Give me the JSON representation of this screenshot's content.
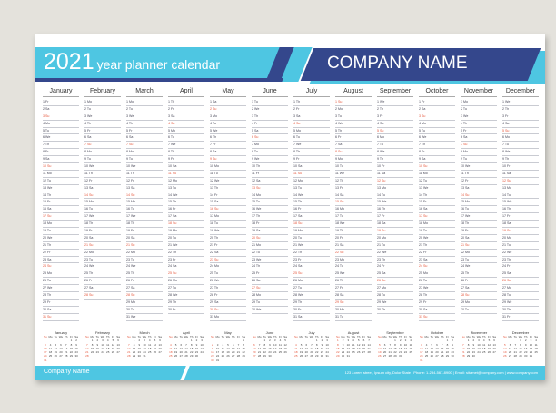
{
  "header": {
    "year": "2021",
    "subtitle": "year planner calendar",
    "company": "COMPANY NAME"
  },
  "months": [
    "January",
    "February",
    "March",
    "April",
    "May",
    "June",
    "July",
    "August",
    "September",
    "October",
    "November",
    "December"
  ],
  "weekday_abbr": [
    "Su",
    "Mo",
    "Tu",
    "We",
    "Th",
    "Fr",
    "Sa"
  ],
  "footer": {
    "company": "Company Name",
    "info": "123 Lorem street, Ipsum city, Dolor State  |  Phone: 1-234-567-8900  |  Email: sitamet@company.com  |  www.company.com"
  },
  "colors": {
    "cyan": "#4ec6e2",
    "navy": "#34478c",
    "sunday": "#e5553a"
  }
}
